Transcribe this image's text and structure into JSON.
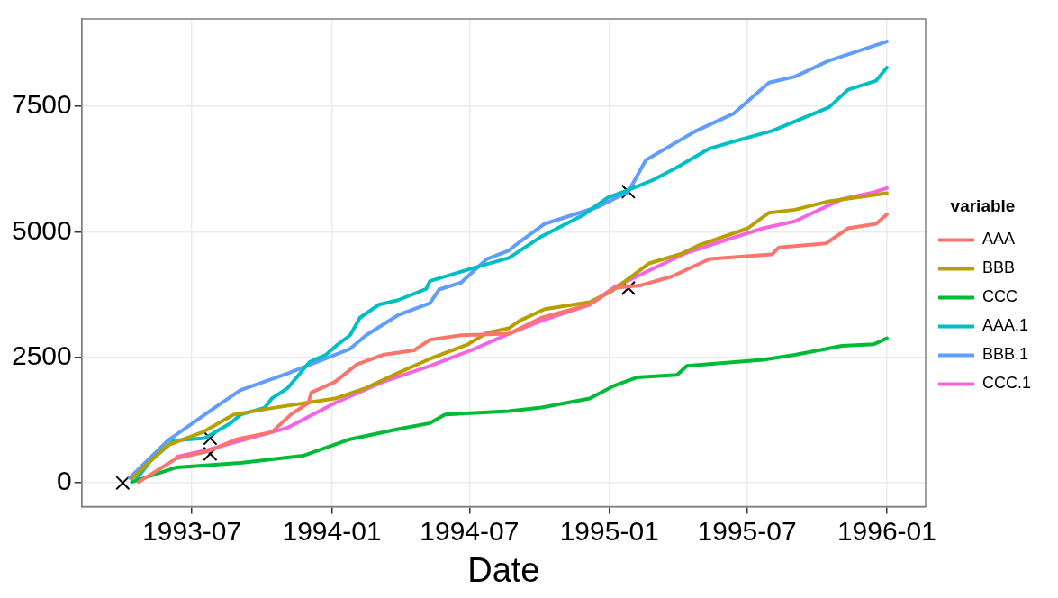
{
  "chart_data": {
    "type": "line",
    "xlabel": "Date",
    "legend_title": "variable",
    "legend": "right",
    "grid": true,
    "marker": "none",
    "xlim": [
      "1993-02-06",
      "1996-02-21"
    ],
    "xticks": [
      "1993-07",
      "1994-01",
      "1994-07",
      "1995-01",
      "1995-07",
      "1996-01"
    ],
    "ylim": [
      -470,
      9240
    ],
    "yticks": [
      0,
      2500,
      5000,
      7500
    ],
    "series": [
      {
        "name": "AAA",
        "color": "#f8766d",
        "x": [
          "1993-04-22",
          "1993-06-11",
          "1993-07-22",
          "1993-08-29",
          "1993-10-14",
          "1993-11-08",
          "1993-12-01",
          "1993-12-05",
          "1994-01-05",
          "1994-02-03",
          "1994-03-09",
          "1994-04-19",
          "1994-05-01",
          "1994-05-10",
          "1994-06-20",
          "1994-08-22",
          "1994-10-04",
          "1994-12-06",
          "1995-01-08",
          "1995-02-10",
          "1995-03-24",
          "1995-05-13",
          "1995-08-03",
          "1995-08-12",
          "1995-10-13",
          "1995-11-11",
          "1995-12-18",
          "1996-01-01"
        ],
        "values": [
          20,
          490,
          630,
          870,
          1010,
          1360,
          1590,
          1800,
          2010,
          2360,
          2550,
          2640,
          2760,
          2850,
          2940,
          2970,
          3290,
          3550,
          3880,
          3930,
          4110,
          4460,
          4550,
          4690,
          4770,
          5070,
          5160,
          5350
        ]
      },
      {
        "name": "BBB",
        "color": "#b79f00",
        "x": [
          "1993-04-13",
          "1993-05-30",
          "1993-07-15",
          "1993-08-25",
          "1993-10-14",
          "1994-01-05",
          "1994-02-15",
          "1994-03-29",
          "1994-05-10",
          "1994-06-29",
          "1994-07-24",
          "1994-08-22",
          "1994-09-05",
          "1994-10-08",
          "1994-12-06",
          "1995-01-03",
          "1995-01-24",
          "1995-02-22",
          "1995-04-05",
          "1995-04-30",
          "1995-07-02",
          "1995-07-30",
          "1995-09-02",
          "1995-10-17",
          "1996-01-01"
        ],
        "values": [
          90,
          750,
          1010,
          1360,
          1490,
          1680,
          1890,
          2190,
          2470,
          2760,
          2990,
          3080,
          3230,
          3460,
          3600,
          3810,
          4040,
          4370,
          4560,
          4740,
          5070,
          5380,
          5440,
          5610,
          5770
        ]
      },
      {
        "name": "CCC",
        "color": "#00ba38",
        "x": [
          "1993-04-13",
          "1993-06-11",
          "1993-09-03",
          "1993-11-24",
          "1994-01-25",
          "1994-03-29",
          "1994-05-10",
          "1994-05-30",
          "1994-08-22",
          "1994-10-04",
          "1994-12-06",
          "1995-01-08",
          "1995-02-06",
          "1995-03-31",
          "1995-04-13",
          "1995-07-22",
          "1995-09-02",
          "1995-11-03",
          "1995-12-15",
          "1996-01-01"
        ],
        "values": [
          20,
          310,
          400,
          540,
          870,
          1070,
          1190,
          1360,
          1430,
          1500,
          1680,
          1940,
          2100,
          2150,
          2330,
          2450,
          2550,
          2730,
          2760,
          2880
        ]
      },
      {
        "name": "AAA.1",
        "color": "#00bfc4",
        "x": [
          "1993-04-18",
          "1993-05-08",
          "1993-06-07",
          "1993-07-18",
          "1993-08-21",
          "1993-09-03",
          "1993-10-05",
          "1993-10-14",
          "1993-11-04",
          "1993-12-03",
          "1993-12-24",
          "1994-01-09",
          "1994-01-25",
          "1994-02-07",
          "1994-03-04",
          "1994-03-29",
          "1994-05-05",
          "1994-05-10",
          "1994-07-06",
          "1994-08-22",
          "1994-10-04",
          "1994-11-27",
          "1994-12-30",
          "1995-01-24",
          "1995-02-27",
          "1995-03-28",
          "1995-05-13",
          "1995-06-23",
          "1995-08-03",
          "1995-10-17",
          "1995-11-11",
          "1995-12-18",
          "1996-01-01"
        ],
        "values": [
          50,
          450,
          840,
          890,
          1190,
          1360,
          1500,
          1680,
          1890,
          2410,
          2550,
          2760,
          2940,
          3290,
          3550,
          3640,
          3860,
          4020,
          4280,
          4480,
          4910,
          5330,
          5680,
          5820,
          6030,
          6260,
          6660,
          6840,
          7010,
          7480,
          7830,
          8010,
          8270
        ]
      },
      {
        "name": "BBB.1",
        "color": "#619cff",
        "x": [
          "1993-04-10",
          "1993-05-30",
          "1993-07-31",
          "1993-09-03",
          "1993-11-04",
          "1994-01-25",
          "1994-02-15",
          "1994-03-29",
          "1994-05-10",
          "1994-05-22",
          "1994-06-20",
          "1994-07-24",
          "1994-08-22",
          "1994-09-05",
          "1994-10-08",
          "1994-12-18",
          "1995-01-26",
          "1995-02-18",
          "1995-04-25",
          "1995-06-14",
          "1995-07-30",
          "1995-09-02",
          "1995-10-17",
          "1996-01-01"
        ],
        "values": [
          100,
          840,
          1500,
          1850,
          2180,
          2670,
          2940,
          3340,
          3580,
          3850,
          3990,
          4460,
          4630,
          4800,
          5160,
          5500,
          5800,
          6430,
          7010,
          7360,
          7970,
          8090,
          8410,
          8790
        ]
      },
      {
        "name": "CCC.1",
        "color": "#f564e3",
        "x": [
          "1993-06-11",
          "1993-07-22",
          "1993-09-03",
          "1993-11-04",
          "1994-01-05",
          "1994-03-09",
          "1994-05-10",
          "1994-07-03",
          "1994-08-22",
          "1994-10-04",
          "1994-12-06",
          "1995-01-08",
          "1995-02-06",
          "1995-04-09",
          "1995-05-20",
          "1995-07-22",
          "1995-09-02",
          "1995-11-03",
          "1995-12-15",
          "1996-01-01"
        ],
        "values": [
          520,
          660,
          840,
          1100,
          1590,
          2010,
          2330,
          2640,
          2970,
          3230,
          3550,
          3900,
          4110,
          4560,
          4770,
          5070,
          5210,
          5650,
          5790,
          5870
        ]
      },
      {
        "type": "scatter",
        "color": "#000000",
        "marker": "cross",
        "x": [
          "1993-04-01",
          "1993-07-25",
          "1993-07-25",
          "1995-01-26",
          "1995-01-26"
        ],
        "values": [
          0,
          890,
          580,
          5800,
          3880
        ]
      }
    ]
  }
}
